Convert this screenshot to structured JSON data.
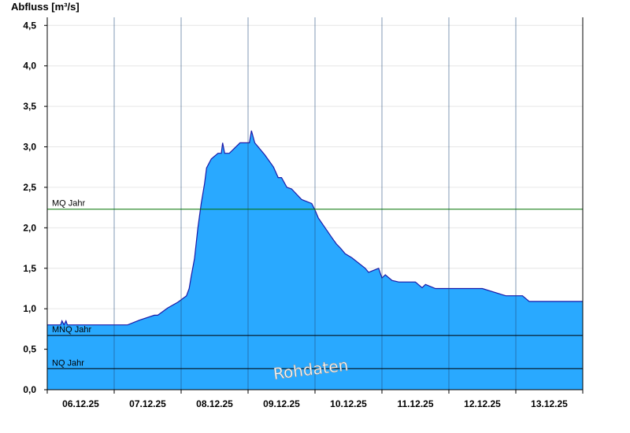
{
  "chart_data": {
    "type": "area",
    "ylabel": "Abfluss [m³/s]",
    "ylim": [
      0,
      4.6
    ],
    "yticks": [
      "0,0",
      "0,5",
      "1,0",
      "1,5",
      "2,0",
      "2,5",
      "3,0",
      "3,5",
      "4,0",
      "4,5"
    ],
    "ytick_values": [
      0,
      0.5,
      1.0,
      1.5,
      2.0,
      2.5,
      3.0,
      3.5,
      4.0,
      4.5
    ],
    "xlabel": "",
    "xlim_days": [
      0,
      8
    ],
    "xticks": [
      "06.12.25",
      "07.12.25",
      "08.12.25",
      "09.12.25",
      "10.12.25",
      "11.12.25",
      "12.12.25",
      "13.12.25"
    ],
    "grid": true,
    "watermark": "Rohdaten",
    "series": [
      {
        "color": "#29a9ff",
        "x": [
          0,
          0.2,
          0.22,
          0.25,
          0.28,
          0.3,
          1.0,
          1.2,
          1.38,
          1.6,
          1.65,
          1.8,
          1.95,
          2.08,
          2.12,
          2.15,
          2.2,
          2.25,
          2.3,
          2.35,
          2.38,
          2.45,
          2.55,
          2.6,
          2.62,
          2.65,
          2.72,
          2.88,
          3.02,
          3.05,
          3.1,
          3.25,
          3.38,
          3.45,
          3.5,
          3.58,
          3.65,
          3.8,
          3.95,
          4.0,
          4.05,
          4.15,
          4.25,
          4.32,
          4.38,
          4.45,
          4.55,
          4.75,
          4.8,
          4.95,
          5.0,
          5.05,
          5.15,
          5.25,
          5.5,
          5.6,
          5.65,
          5.8,
          6.5,
          6.85,
          7.1,
          7.2,
          8.0
        ],
        "y": [
          0.8,
          0.8,
          0.85,
          0.8,
          0.85,
          0.8,
          0.8,
          0.8,
          0.86,
          0.92,
          0.92,
          1.01,
          1.08,
          1.16,
          1.25,
          1.4,
          1.62,
          2.0,
          2.3,
          2.55,
          2.74,
          2.85,
          2.92,
          2.92,
          3.05,
          2.92,
          2.92,
          3.05,
          3.05,
          3.2,
          3.05,
          2.9,
          2.75,
          2.62,
          2.62,
          2.5,
          2.48,
          2.35,
          2.3,
          2.22,
          2.12,
          2.0,
          1.88,
          1.8,
          1.75,
          1.68,
          1.63,
          1.5,
          1.45,
          1.5,
          1.38,
          1.42,
          1.35,
          1.33,
          1.33,
          1.26,
          1.3,
          1.25,
          1.25,
          1.16,
          1.16,
          1.09,
          1.09
        ]
      }
    ],
    "reference_lines": [
      {
        "label": "MQ Jahr",
        "value": 2.23,
        "color": "#007000"
      },
      {
        "label": "MNQ Jahr",
        "value": 0.67,
        "color": "#000000"
      },
      {
        "label": "NQ Jahr",
        "value": 0.26,
        "color": "#000000"
      }
    ]
  }
}
